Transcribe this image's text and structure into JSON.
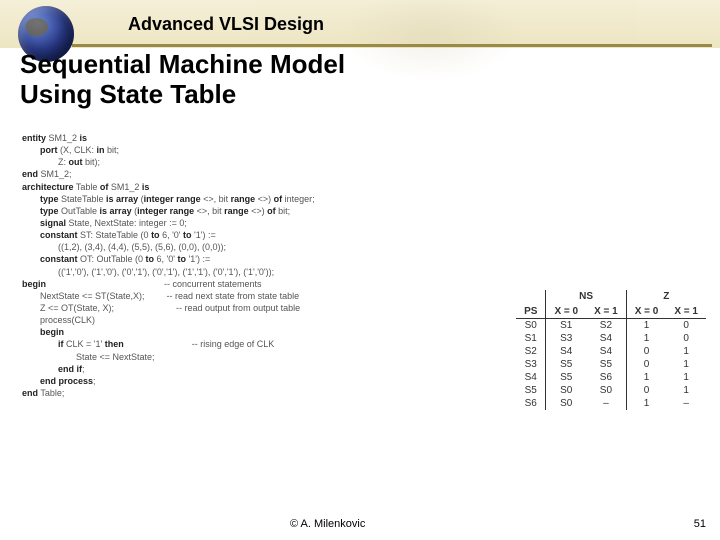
{
  "header": {
    "course_title": "Advanced VLSI Design",
    "accent_color": "#9a8a48",
    "bg_gradient": [
      "#e8dca8",
      "#e0d090",
      "#d8c878"
    ]
  },
  "title_line1": "Sequential Machine Model",
  "title_line2": "Using State Table",
  "code": {
    "l1a": "entity",
    "l1b": " SM1_2 ",
    "l1c": "is",
    "l2a": "port",
    "l2b": " (X, CLK: ",
    "l2c": "in",
    "l2d": " bit;",
    "l3a": "Z: ",
    "l3b": "out",
    "l3c": " bit);",
    "l4a": "end",
    "l4b": " SM1_2;",
    "blank1": " ",
    "l5a": "architecture",
    "l5b": " Table ",
    "l5c": "of",
    "l5d": " SM1_2 ",
    "l5e": "is",
    "l6a": "type",
    "l6b": " StateTable ",
    "l6c": "is array",
    "l6d": " (",
    "l6e": "integer range",
    "l6f": " <>, bit ",
    "l6g": "range",
    "l6h": " <>) ",
    "l6i": "of",
    "l6j": " integer;",
    "l7a": "type",
    "l7b": " OutTable ",
    "l7c": "is array",
    "l7d": " (",
    "l7e": "integer range",
    "l7f": " <>, bit ",
    "l7g": "range",
    "l7h": " <>) ",
    "l7i": "of",
    "l7j": " bit;",
    "l8a": "signal",
    "l8b": " State, NextState: integer := 0;",
    "l9a": "constant",
    "l9b": " ST: StateTable (0 ",
    "l9c": "to",
    "l9d": " 6, '0' ",
    "l9e": "to",
    "l9f": " '1') :=",
    "l10": "((1,2), (3,4), (4,4), (5,5), (5,6), (0,0), (0,0));",
    "l11a": "constant",
    "l11b": " OT: OutTable (0 ",
    "l11c": "to",
    "l11d": " 6, '0' ",
    "l11e": "to",
    "l11f": " '1') :=",
    "l12": "(('1','0'), ('1','0'), ('0','1'), ('0','1'), ('1','1'), ('0','1'), ('1','0'));",
    "l13": "begin",
    "l14": "NextState <= ST(State,X);",
    "c14": "-- concurrent statements",
    "l15": "Z <= OT(State, X);",
    "c15": "-- read next state from state table",
    "l16": "process(CLK)",
    "c16": "-- read output from output table",
    "l17": "begin",
    "l18a": "if",
    "l18b": " CLK = '1' ",
    "l18c": "then",
    "c18": "-- rising edge of CLK",
    "l19": "State <= NextState;",
    "l20a": "end if",
    "l20b": ";",
    "l21a": "end process",
    "l21b": ";",
    "l22a": "end",
    "l22b": " Table;"
  },
  "table": {
    "group_headers": [
      "",
      "NS",
      "Z"
    ],
    "col_headers": [
      "PS",
      "X = 0",
      "X = 1",
      "X = 0",
      "X = 1"
    ],
    "rows": [
      [
        "S0",
        "S1",
        "S2",
        "1",
        "0"
      ],
      [
        "S1",
        "S3",
        "S4",
        "1",
        "0"
      ],
      [
        "S2",
        "S4",
        "S4",
        "0",
        "1"
      ],
      [
        "S3",
        "S5",
        "S5",
        "0",
        "1"
      ],
      [
        "S4",
        "S5",
        "S6",
        "1",
        "1"
      ],
      [
        "S5",
        "S0",
        "S0",
        "0",
        "1"
      ],
      [
        "S6",
        "S0",
        "–",
        "1",
        "–"
      ]
    ],
    "border_color": "#333333",
    "fontsize": 10
  },
  "footer": {
    "copyright_symbol": "©",
    "author": " A. Milenkovic",
    "page": "51"
  }
}
